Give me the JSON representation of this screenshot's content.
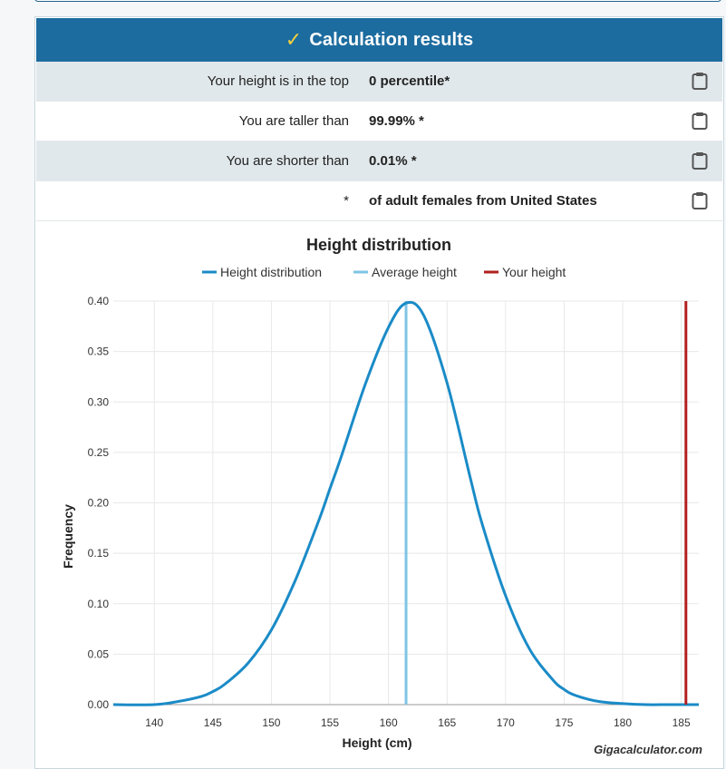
{
  "results": {
    "title": "Calculation results",
    "rows": [
      {
        "label": "Your height is in the top",
        "value": "0 percentile*"
      },
      {
        "label": "You are taller than",
        "value": "99.99% *"
      },
      {
        "label": "You are shorter than",
        "value": "0.01% *"
      },
      {
        "label": "*",
        "value": "of adult females from United States"
      }
    ]
  },
  "brand": "Gigacalculator.com",
  "colors": {
    "header": "#1d6c9f",
    "check": "#f4d03f",
    "distribution": "#1a8bc7",
    "average": "#7fc4e6",
    "your_height": "#b21f1f"
  },
  "chart_data": {
    "type": "line",
    "title": "Height distribution",
    "xlabel": "Height (cm)",
    "ylabel": "Frequency",
    "xlim": [
      136.5,
      186.5
    ],
    "ylim": [
      0,
      0.4
    ],
    "x_ticks": [
      "140",
      "145",
      "150",
      "155",
      "160",
      "165",
      "170",
      "175",
      "180",
      "185"
    ],
    "y_ticks": [
      "0.00",
      "0.05",
      "0.10",
      "0.15",
      "0.20",
      "0.25",
      "0.30",
      "0.35",
      "0.40"
    ],
    "legend_position": "top",
    "grid": true,
    "series": [
      {
        "name": "Height distribution",
        "x": [
          136.5,
          140,
          142,
          144,
          145,
          146,
          148,
          150,
          152,
          154,
          155,
          156,
          158,
          160,
          161.5,
          163,
          165,
          167,
          168,
          170,
          172,
          174,
          175,
          176,
          178,
          180,
          182,
          184,
          186.5
        ],
        "y": [
          0.0,
          0.0,
          0.003,
          0.008,
          0.013,
          0.02,
          0.041,
          0.074,
          0.122,
          0.181,
          0.214,
          0.247,
          0.317,
          0.374,
          0.398,
          0.386,
          0.319,
          0.224,
          0.179,
          0.108,
          0.056,
          0.025,
          0.015,
          0.009,
          0.003,
          0.001,
          0.0,
          0.0,
          0.0
        ]
      },
      {
        "name": "Average height",
        "x": 161.5
      },
      {
        "name": "Your height",
        "x": 185.4
      }
    ]
  }
}
